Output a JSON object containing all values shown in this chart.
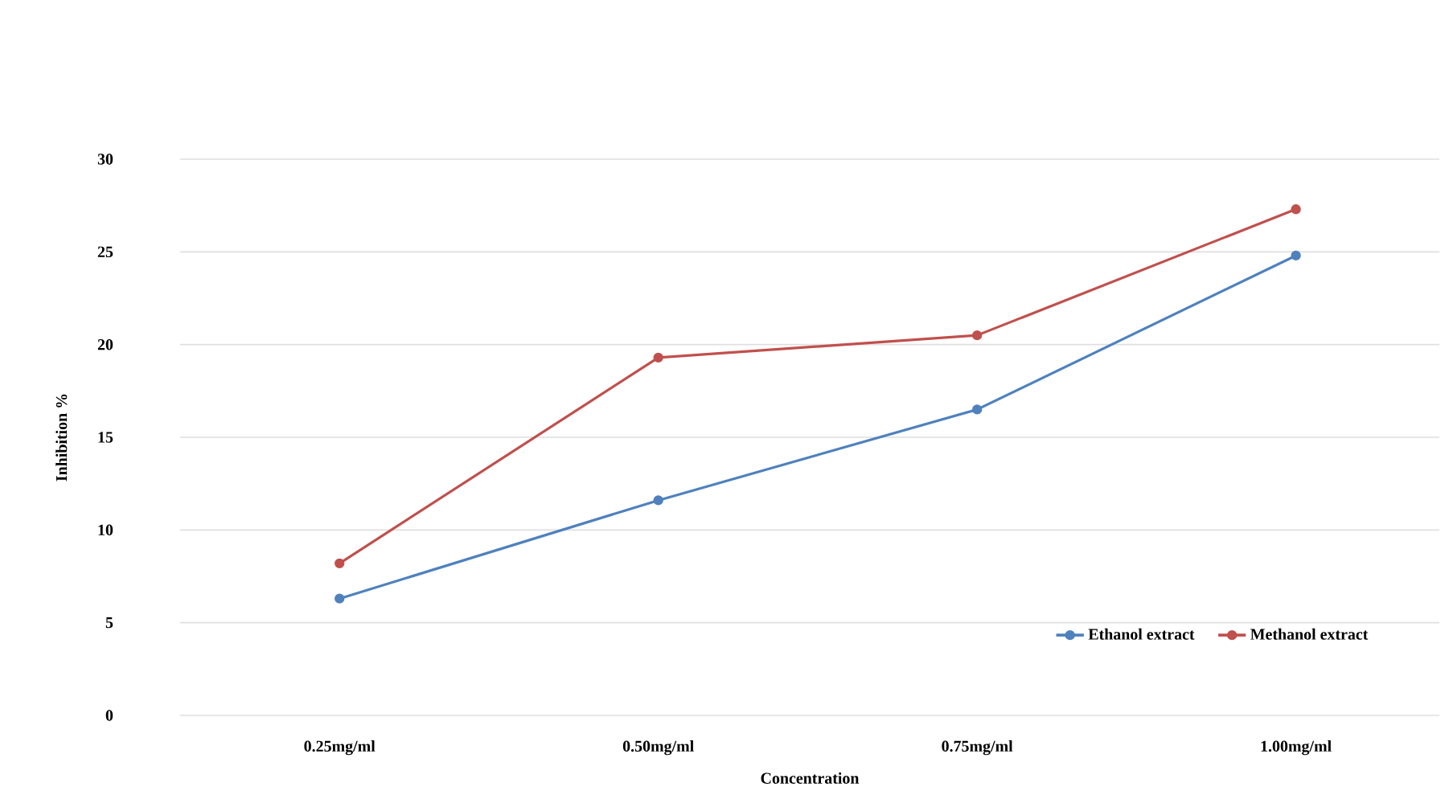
{
  "chart_data": {
    "type": "line",
    "xlabel": "Concentration",
    "ylabel": "Inhibition %",
    "categories": [
      "0.25mg/ml",
      "0.50mg/ml",
      "0.75mg/ml",
      "1.00mg/ml"
    ],
    "series": [
      {
        "name": "Ethanol extract",
        "color": "#4f81bd",
        "values": [
          6.3,
          11.6,
          16.5,
          24.8
        ]
      },
      {
        "name": "Methanol extract",
        "color": "#c0504d",
        "values": [
          8.2,
          19.3,
          20.5,
          27.3
        ]
      }
    ],
    "ylim": [
      0,
      30
    ],
    "yticks": [
      0,
      5,
      10,
      15,
      20,
      25,
      30
    ],
    "grid": "y",
    "legend": "bottom right",
    "marker": "circle",
    "line_style": "solid"
  }
}
